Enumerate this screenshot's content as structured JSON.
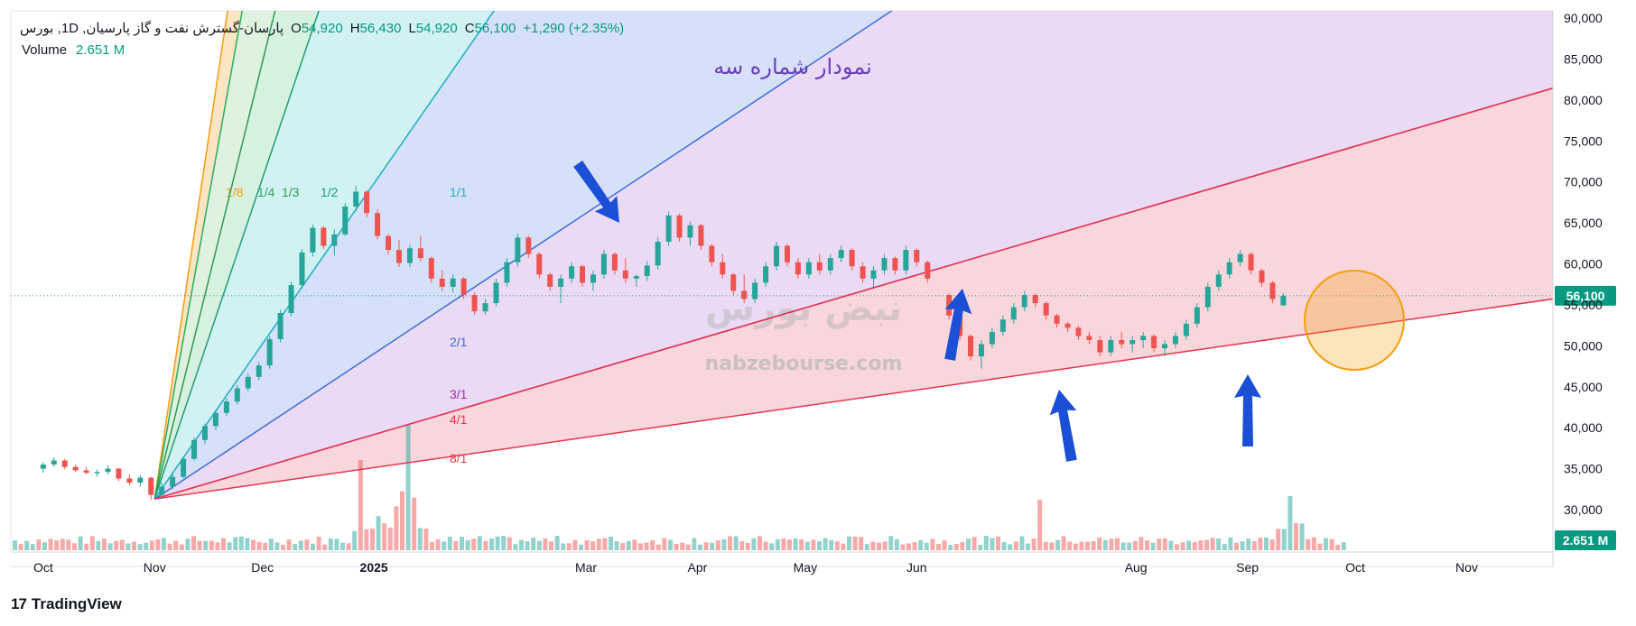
{
  "header": {
    "symbol": "پارسان-گسترش نفت و گاز پارسیان, 1D, بورس",
    "open_label": "O",
    "open": "54,920",
    "high_label": "H",
    "high": "56,430",
    "low_label": "L",
    "low": "54,920",
    "close_label": "C",
    "close": "56,100",
    "change": "+1,290 (+2.35%)",
    "volume_label": "Volume",
    "volume": "2.651 M"
  },
  "annotation_title": "نمودار شماره سه",
  "watermark": {
    "url": "nabzebourse.com",
    "logo_text": "نبض بورس"
  },
  "footer": {
    "brand": "TradingView"
  },
  "colors": {
    "up": "#26a69a",
    "down": "#ef5350",
    "arrow": "#1a4fd6",
    "circle": "#f59e0b",
    "price_tag": "#089981"
  },
  "chart_data": {
    "type": "candlestick",
    "y_axis": {
      "ticks": [
        30000,
        35000,
        40000,
        45000,
        50000,
        55000,
        60000,
        65000,
        70000,
        75000,
        80000,
        85000,
        90000
      ],
      "labels": [
        "30,000",
        "35,000",
        "40,000",
        "45,000",
        "50,000",
        "55,000",
        "60,000",
        "65,000",
        "70,000",
        "75,000",
        "80,000",
        "85,000",
        "90,000"
      ],
      "position": "right"
    },
    "x_axis": {
      "labels": [
        {
          "text": "Oct",
          "date": "2024-10-01"
        },
        {
          "text": "Nov",
          "date": "2024-11-01"
        },
        {
          "text": "Dec",
          "date": "2024-12-01"
        },
        {
          "text": "2025",
          "date": "2025-01-01"
        },
        {
          "text": "Mar",
          "date": "2025-03-01"
        },
        {
          "text": "Apr",
          "date": "2025-04-01"
        },
        {
          "text": "May",
          "date": "2025-05-01"
        },
        {
          "text": "Jun",
          "date": "2025-06-01"
        },
        {
          "text": "Aug",
          "date": "2025-08-01"
        },
        {
          "text": "Sep",
          "date": "2025-09-01"
        },
        {
          "text": "Oct",
          "date": "2025-10-01"
        },
        {
          "text": "Nov",
          "date": "2025-11-01"
        }
      ]
    },
    "last_price": {
      "value": 56100,
      "label": "56,100"
    },
    "last_volume": {
      "label": "2.651 M"
    },
    "gann_fan": {
      "origin": {
        "date": "2024-11-01",
        "price": 31300
      },
      "lines": [
        {
          "label": "1/8",
          "through": {
            "date": "2024-11-21",
            "price": 90000
          },
          "color": "#f39c12"
        },
        {
          "label": "1/4",
          "through": {
            "date": "2024-11-25",
            "price": 90000
          },
          "color": "#27ae60"
        },
        {
          "label": "1/3",
          "through": {
            "date": "2024-12-04",
            "price": 90000
          },
          "color": "#2e9a4f"
        },
        {
          "label": "1/2",
          "through": {
            "date": "2024-12-16",
            "price": 90000
          },
          "color": "#1f9e78"
        },
        {
          "label": "1/1",
          "through": {
            "date": "2025-02-02",
            "price": 90000
          },
          "color": "#1ab0c4"
        },
        {
          "label": "2/1",
          "through": {
            "date": "2025-05-22",
            "price": 90000
          },
          "color": "#3a6fd8"
        },
        {
          "label": "3/1",
          "through": {
            "date": "2025-11-20",
            "price": 80800
          },
          "color": "#9b2bb5"
        },
        {
          "label": "4/1",
          "through": {
            "date": "2025-11-20",
            "price": 80800
          },
          "color": "#e8334a"
        },
        {
          "label": "8/1",
          "through": {
            "date": "2025-11-20",
            "price": 55400
          },
          "color": "#e8334a"
        }
      ]
    },
    "candles": [
      {
        "date": "2024-10-01",
        "o": 35000,
        "h": 35800,
        "l": 34500,
        "c": 35500
      },
      {
        "date": "2024-10-04",
        "o": 35500,
        "h": 36400,
        "l": 35200,
        "c": 36000
      },
      {
        "date": "2024-10-07",
        "o": 36000,
        "h": 36200,
        "l": 34900,
        "c": 35200
      },
      {
        "date": "2024-10-10",
        "o": 35200,
        "h": 35500,
        "l": 34600,
        "c": 34800
      },
      {
        "date": "2024-10-13",
        "o": 34800,
        "h": 35200,
        "l": 34300,
        "c": 34500
      },
      {
        "date": "2024-10-16",
        "o": 34500,
        "h": 34900,
        "l": 34000,
        "c": 34600
      },
      {
        "date": "2024-10-19",
        "o": 34600,
        "h": 35400,
        "l": 34300,
        "c": 35000
      },
      {
        "date": "2024-10-22",
        "o": 35000,
        "h": 35100,
        "l": 33500,
        "c": 33800
      },
      {
        "date": "2024-10-25",
        "o": 33800,
        "h": 34300,
        "l": 33000,
        "c": 33300
      },
      {
        "date": "2024-10-28",
        "o": 33300,
        "h": 34200,
        "l": 32800,
        "c": 33900
      },
      {
        "date": "2024-10-31",
        "o": 33900,
        "h": 34000,
        "l": 31200,
        "c": 31800
      },
      {
        "date": "2024-11-03",
        "o": 31800,
        "h": 33300,
        "l": 31300,
        "c": 32800
      },
      {
        "date": "2024-11-06",
        "o": 32800,
        "h": 34500,
        "l": 32500,
        "c": 34000
      },
      {
        "date": "2024-11-09",
        "o": 34000,
        "h": 36500,
        "l": 33800,
        "c": 36200
      },
      {
        "date": "2024-11-12",
        "o": 36200,
        "h": 38800,
        "l": 36000,
        "c": 38500
      },
      {
        "date": "2024-11-15",
        "o": 38500,
        "h": 40500,
        "l": 38000,
        "c": 40200
      },
      {
        "date": "2024-11-18",
        "o": 40200,
        "h": 42200,
        "l": 39700,
        "c": 41800
      },
      {
        "date": "2024-11-21",
        "o": 41800,
        "h": 43600,
        "l": 41400,
        "c": 43200
      },
      {
        "date": "2024-11-24",
        "o": 43200,
        "h": 45200,
        "l": 42800,
        "c": 44800
      },
      {
        "date": "2024-11-27",
        "o": 44800,
        "h": 46600,
        "l": 44400,
        "c": 46200
      },
      {
        "date": "2024-11-30",
        "o": 46200,
        "h": 48000,
        "l": 45800,
        "c": 47600
      },
      {
        "date": "2024-12-03",
        "o": 47600,
        "h": 51200,
        "l": 47200,
        "c": 50800
      },
      {
        "date": "2024-12-06",
        "o": 50800,
        "h": 54400,
        "l": 50400,
        "c": 54000
      },
      {
        "date": "2024-12-09",
        "o": 54000,
        "h": 57800,
        "l": 53600,
        "c": 57400
      },
      {
        "date": "2024-12-12",
        "o": 57400,
        "h": 61800,
        "l": 57000,
        "c": 61400
      },
      {
        "date": "2024-12-15",
        "o": 61400,
        "h": 64800,
        "l": 60900,
        "c": 64400
      },
      {
        "date": "2024-12-18",
        "o": 64400,
        "h": 64600,
        "l": 61800,
        "c": 62200
      },
      {
        "date": "2024-12-21",
        "o": 62200,
        "h": 64200,
        "l": 61000,
        "c": 63600
      },
      {
        "date": "2024-12-24",
        "o": 63600,
        "h": 67400,
        "l": 63400,
        "c": 67000
      },
      {
        "date": "2024-12-27",
        "o": 67000,
        "h": 69500,
        "l": 66400,
        "c": 68800
      },
      {
        "date": "2024-12-30",
        "o": 68800,
        "h": 69000,
        "l": 65700,
        "c": 66200
      },
      {
        "date": "2025-01-02",
        "o": 66200,
        "h": 66600,
        "l": 63000,
        "c": 63400
      },
      {
        "date": "2025-01-05",
        "o": 63400,
        "h": 63600,
        "l": 61200,
        "c": 61700
      },
      {
        "date": "2025-01-08",
        "o": 61700,
        "h": 62900,
        "l": 59600,
        "c": 60100
      },
      {
        "date": "2025-01-11",
        "o": 60100,
        "h": 62300,
        "l": 59600,
        "c": 61900
      },
      {
        "date": "2025-01-14",
        "o": 61900,
        "h": 63400,
        "l": 60300,
        "c": 60700
      },
      {
        "date": "2025-01-17",
        "o": 60700,
        "h": 60900,
        "l": 57700,
        "c": 58200
      },
      {
        "date": "2025-01-20",
        "o": 58200,
        "h": 59200,
        "l": 56700,
        "c": 57200
      },
      {
        "date": "2025-01-23",
        "o": 57200,
        "h": 58700,
        "l": 56500,
        "c": 58200
      },
      {
        "date": "2025-01-26",
        "o": 58200,
        "h": 58400,
        "l": 55700,
        "c": 56200
      },
      {
        "date": "2025-01-29",
        "o": 56200,
        "h": 56500,
        "l": 53800,
        "c": 54200
      },
      {
        "date": "2025-02-01",
        "o": 54200,
        "h": 55700,
        "l": 53800,
        "c": 55200
      },
      {
        "date": "2025-02-04",
        "o": 55200,
        "h": 58200,
        "l": 54800,
        "c": 57700
      },
      {
        "date": "2025-02-07",
        "o": 57700,
        "h": 60700,
        "l": 57200,
        "c": 60200
      },
      {
        "date": "2025-02-10",
        "o": 60200,
        "h": 63700,
        "l": 59700,
        "c": 63200
      },
      {
        "date": "2025-02-13",
        "o": 63200,
        "h": 63400,
        "l": 60700,
        "c": 61200
      },
      {
        "date": "2025-02-16",
        "o": 61200,
        "h": 61400,
        "l": 58200,
        "c": 58700
      },
      {
        "date": "2025-02-19",
        "o": 58700,
        "h": 58900,
        "l": 56700,
        "c": 57200
      },
      {
        "date": "2025-02-22",
        "o": 57200,
        "h": 58700,
        "l": 55200,
        "c": 58200
      },
      {
        "date": "2025-02-25",
        "o": 58200,
        "h": 60200,
        "l": 57700,
        "c": 59700
      },
      {
        "date": "2025-02-28",
        "o": 59700,
        "h": 59900,
        "l": 57200,
        "c": 57700
      },
      {
        "date": "2025-03-03",
        "o": 57700,
        "h": 59200,
        "l": 56700,
        "c": 58700
      },
      {
        "date": "2025-03-06",
        "o": 58700,
        "h": 61700,
        "l": 58200,
        "c": 61200
      },
      {
        "date": "2025-03-09",
        "o": 61200,
        "h": 61400,
        "l": 58700,
        "c": 59200
      },
      {
        "date": "2025-03-12",
        "o": 59200,
        "h": 60700,
        "l": 57700,
        "c": 58200
      },
      {
        "date": "2025-03-15",
        "o": 58200,
        "h": 58700,
        "l": 57200,
        "c": 58500
      },
      {
        "date": "2025-03-18",
        "o": 58500,
        "h": 60300,
        "l": 57900,
        "c": 59800
      },
      {
        "date": "2025-03-21",
        "o": 59800,
        "h": 63200,
        "l": 59300,
        "c": 62700
      },
      {
        "date": "2025-03-24",
        "o": 62700,
        "h": 66400,
        "l": 62200,
        "c": 65900
      },
      {
        "date": "2025-03-27",
        "o": 65900,
        "h": 66100,
        "l": 62700,
        "c": 63200
      },
      {
        "date": "2025-03-30",
        "o": 63200,
        "h": 65200,
        "l": 62200,
        "c": 64700
      },
      {
        "date": "2025-04-02",
        "o": 64700,
        "h": 64900,
        "l": 61700,
        "c": 62200
      },
      {
        "date": "2025-04-05",
        "o": 62200,
        "h": 62400,
        "l": 59700,
        "c": 60200
      },
      {
        "date": "2025-04-08",
        "o": 60200,
        "h": 61200,
        "l": 58200,
        "c": 58700
      },
      {
        "date": "2025-04-11",
        "o": 58700,
        "h": 58900,
        "l": 56200,
        "c": 56700
      },
      {
        "date": "2025-04-14",
        "o": 56700,
        "h": 58700,
        "l": 55200,
        "c": 55700
      },
      {
        "date": "2025-04-17",
        "o": 55700,
        "h": 58200,
        "l": 55200,
        "c": 57700
      },
      {
        "date": "2025-04-20",
        "o": 57700,
        "h": 60200,
        "l": 57200,
        "c": 59700
      },
      {
        "date": "2025-04-23",
        "o": 59700,
        "h": 62700,
        "l": 59200,
        "c": 62200
      },
      {
        "date": "2025-04-26",
        "o": 62200,
        "h": 62400,
        "l": 59700,
        "c": 60200
      },
      {
        "date": "2025-04-29",
        "o": 60200,
        "h": 60700,
        "l": 58200,
        "c": 58700
      },
      {
        "date": "2025-05-02",
        "o": 58700,
        "h": 60700,
        "l": 58200,
        "c": 60200
      },
      {
        "date": "2025-05-05",
        "o": 60200,
        "h": 61200,
        "l": 58700,
        "c": 59200
      },
      {
        "date": "2025-05-08",
        "o": 59200,
        "h": 61200,
        "l": 58700,
        "c": 60700
      },
      {
        "date": "2025-05-11",
        "o": 60700,
        "h": 62200,
        "l": 60200,
        "c": 61700
      },
      {
        "date": "2025-05-14",
        "o": 61700,
        "h": 61900,
        "l": 59200,
        "c": 59700
      },
      {
        "date": "2025-05-17",
        "o": 59700,
        "h": 60200,
        "l": 57700,
        "c": 58200
      },
      {
        "date": "2025-05-20",
        "o": 58200,
        "h": 59700,
        "l": 57200,
        "c": 59200
      },
      {
        "date": "2025-05-23",
        "o": 59200,
        "h": 61200,
        "l": 58700,
        "c": 60700
      },
      {
        "date": "2025-05-26",
        "o": 60700,
        "h": 60900,
        "l": 58700,
        "c": 59200
      },
      {
        "date": "2025-05-29",
        "o": 59200,
        "h": 62200,
        "l": 58700,
        "c": 61700
      },
      {
        "date": "2025-06-01",
        "o": 61700,
        "h": 61900,
        "l": 59700,
        "c": 60200
      },
      {
        "date": "2025-06-04",
        "o": 60200,
        "h": 60400,
        "l": 57700,
        "c": 58200
      },
      {
        "date": "2025-06-10",
        "o": 56200,
        "h": 56400,
        "l": 53200,
        "c": 53700
      },
      {
        "date": "2025-06-13",
        "o": 53700,
        "h": 53900,
        "l": 50700,
        "c": 51200
      },
      {
        "date": "2025-06-16",
        "o": 51200,
        "h": 51400,
        "l": 48200,
        "c": 48700
      },
      {
        "date": "2025-06-19",
        "o": 48700,
        "h": 50700,
        "l": 47200,
        "c": 50200
      },
      {
        "date": "2025-06-22",
        "o": 50200,
        "h": 52200,
        "l": 49700,
        "c": 51700
      },
      {
        "date": "2025-06-25",
        "o": 51700,
        "h": 53700,
        "l": 51200,
        "c": 53200
      },
      {
        "date": "2025-06-28",
        "o": 53200,
        "h": 55200,
        "l": 52700,
        "c": 54700
      },
      {
        "date": "2025-07-01",
        "o": 54700,
        "h": 56700,
        "l": 54200,
        "c": 56200
      },
      {
        "date": "2025-07-04",
        "o": 56200,
        "h": 56400,
        "l": 54700,
        "c": 55200
      },
      {
        "date": "2025-07-07",
        "o": 55200,
        "h": 55400,
        "l": 53200,
        "c": 53700
      },
      {
        "date": "2025-07-10",
        "o": 53700,
        "h": 53900,
        "l": 52200,
        "c": 52700
      },
      {
        "date": "2025-07-13",
        "o": 52700,
        "h": 52900,
        "l": 51700,
        "c": 52200
      },
      {
        "date": "2025-07-16",
        "o": 52200,
        "h": 52400,
        "l": 50700,
        "c": 51200
      },
      {
        "date": "2025-07-19",
        "o": 51200,
        "h": 51700,
        "l": 50200,
        "c": 50700
      },
      {
        "date": "2025-07-22",
        "o": 50700,
        "h": 51200,
        "l": 48700,
        "c": 49200
      },
      {
        "date": "2025-07-25",
        "o": 49200,
        "h": 51200,
        "l": 48700,
        "c": 50700
      },
      {
        "date": "2025-07-28",
        "o": 50700,
        "h": 51700,
        "l": 49700,
        "c": 50200
      },
      {
        "date": "2025-07-31",
        "o": 50200,
        "h": 51200,
        "l": 49200,
        "c": 50700
      },
      {
        "date": "2025-08-03",
        "o": 50700,
        "h": 51700,
        "l": 49700,
        "c": 51200
      },
      {
        "date": "2025-08-06",
        "o": 51200,
        "h": 51400,
        "l": 49200,
        "c": 49700
      },
      {
        "date": "2025-08-09",
        "o": 49700,
        "h": 50700,
        "l": 48700,
        "c": 50200
      },
      {
        "date": "2025-08-12",
        "o": 50200,
        "h": 51700,
        "l": 49700,
        "c": 51200
      },
      {
        "date": "2025-08-15",
        "o": 51200,
        "h": 53200,
        "l": 50700,
        "c": 52700
      },
      {
        "date": "2025-08-18",
        "o": 52700,
        "h": 55200,
        "l": 52200,
        "c": 54700
      },
      {
        "date": "2025-08-21",
        "o": 54700,
        "h": 57700,
        "l": 54200,
        "c": 57200
      },
      {
        "date": "2025-08-24",
        "o": 57200,
        "h": 59200,
        "l": 56700,
        "c": 58700
      },
      {
        "date": "2025-08-27",
        "o": 58700,
        "h": 60700,
        "l": 58200,
        "c": 60200
      },
      {
        "date": "2025-08-30",
        "o": 60200,
        "h": 61700,
        "l": 59700,
        "c": 61200
      },
      {
        "date": "2025-09-02",
        "o": 61200,
        "h": 61400,
        "l": 58700,
        "c": 59200
      },
      {
        "date": "2025-09-05",
        "o": 59200,
        "h": 59400,
        "l": 57200,
        "c": 57700
      },
      {
        "date": "2025-09-08",
        "o": 57700,
        "h": 57900,
        "l": 55200,
        "c": 55700
      },
      {
        "date": "2025-09-11",
        "o": 54920,
        "h": 56430,
        "l": 54920,
        "c": 56100
      }
    ],
    "volume_max": 42000000
  }
}
